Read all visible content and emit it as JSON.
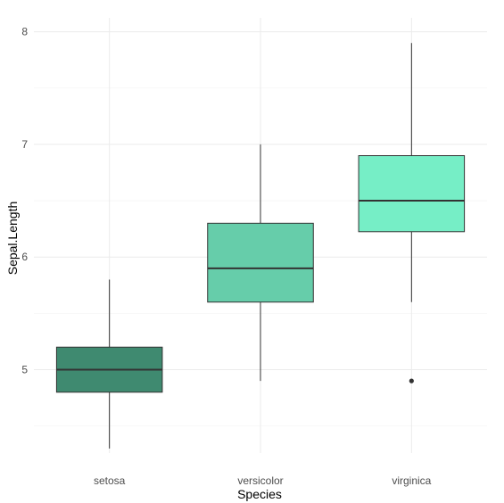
{
  "chart_data": {
    "type": "boxplot",
    "xlabel": "Species",
    "ylabel": "Sepal.Length",
    "categories": [
      "setosa",
      "versicolor",
      "virginica"
    ],
    "ylim": [
      4.15,
      8.1
    ],
    "yticks": [
      5,
      6,
      7,
      8
    ],
    "y_minor_ticks": [
      4.5,
      5.5,
      6.5,
      7.5
    ],
    "grid": true,
    "legend": "none",
    "boxes": [
      {
        "category": "setosa",
        "min": 4.3,
        "q1": 4.8,
        "median": 5.0,
        "q3": 5.2,
        "max": 5.8,
        "outliers": [],
        "fill": "#3f8a70"
      },
      {
        "category": "versicolor",
        "min": 4.9,
        "q1": 5.6,
        "median": 5.9,
        "q3": 6.3,
        "max": 7.0,
        "outliers": [],
        "fill": "#66cdaa"
      },
      {
        "category": "virginica",
        "min": 5.6,
        "q1": 6.225,
        "median": 6.5,
        "q3": 6.9,
        "max": 7.9,
        "outliers": [
          4.9
        ],
        "fill": "#76eec6"
      }
    ]
  },
  "colors": {
    "grid_major": "#ebebeb",
    "grid_minor": "#f5f5f5",
    "outline": "#333333"
  }
}
